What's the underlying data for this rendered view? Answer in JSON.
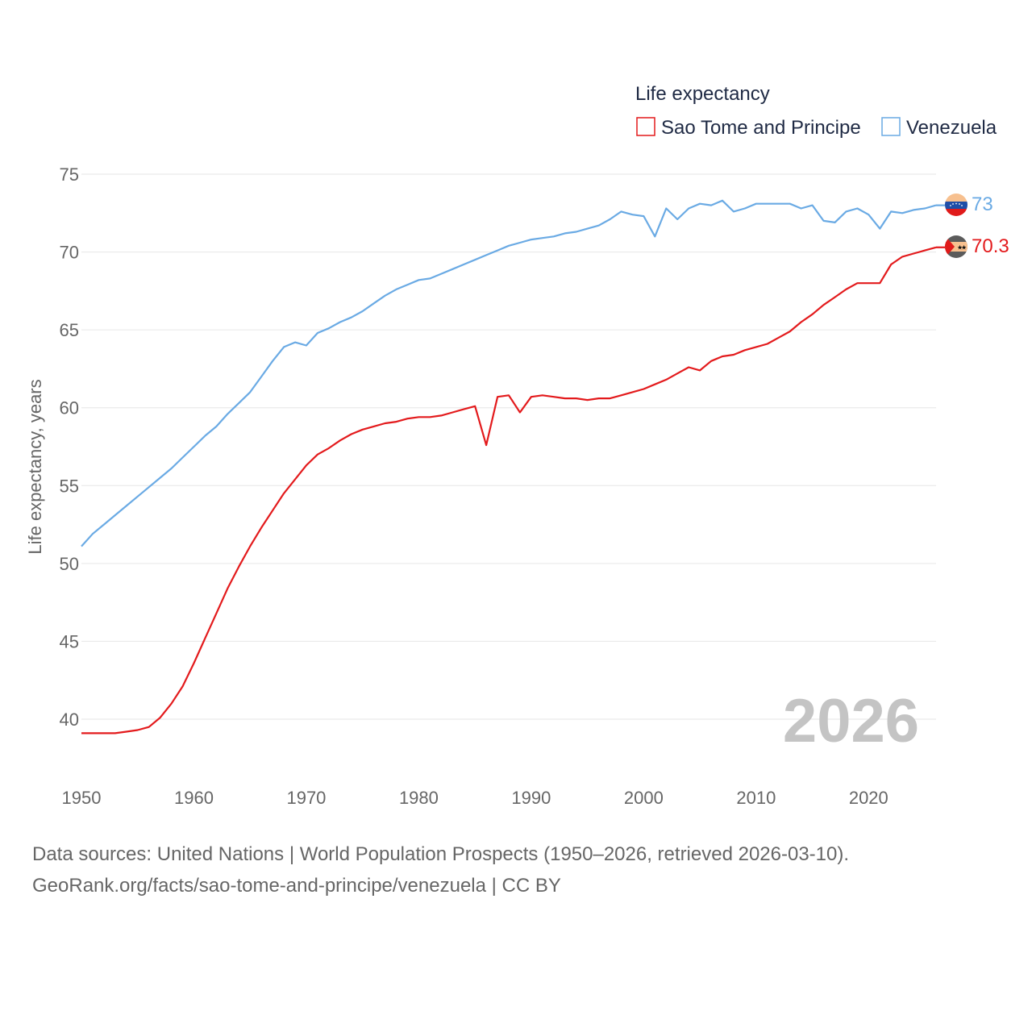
{
  "chart_data": {
    "type": "line",
    "legend_title": "Life expectancy",
    "ylabel": "Life expectancy, years",
    "xlim": [
      1950,
      2026
    ],
    "ylim": [
      37,
      76
    ],
    "y_ticks": [
      40,
      45,
      50,
      55,
      60,
      65,
      70,
      75
    ],
    "x_ticks": [
      1950,
      1960,
      1970,
      1980,
      1990,
      2000,
      2010,
      2020
    ],
    "year_label": "2026",
    "grid": true,
    "legend_position": "top-right",
    "x": [
      1950,
      1951,
      1952,
      1953,
      1954,
      1955,
      1956,
      1957,
      1958,
      1959,
      1960,
      1961,
      1962,
      1963,
      1964,
      1965,
      1966,
      1967,
      1968,
      1969,
      1970,
      1971,
      1972,
      1973,
      1974,
      1975,
      1976,
      1977,
      1978,
      1979,
      1980,
      1981,
      1982,
      1983,
      1984,
      1985,
      1986,
      1987,
      1988,
      1989,
      1990,
      1991,
      1992,
      1993,
      1994,
      1995,
      1996,
      1997,
      1998,
      1999,
      2000,
      2001,
      2002,
      2003,
      2004,
      2005,
      2006,
      2007,
      2008,
      2009,
      2010,
      2011,
      2012,
      2013,
      2014,
      2015,
      2016,
      2017,
      2018,
      2019,
      2020,
      2021,
      2022,
      2023,
      2024,
      2025,
      2026
    ],
    "series": [
      {
        "name": "Sao Tome and Principe",
        "color": "#e31a1c",
        "end_label": "70.3",
        "values": [
          39.1,
          39.1,
          39.1,
          39.1,
          39.2,
          39.3,
          39.5,
          40.1,
          41.0,
          42.1,
          43.6,
          45.2,
          46.8,
          48.4,
          49.8,
          51.1,
          52.3,
          53.4,
          54.5,
          55.4,
          56.3,
          57.0,
          57.4,
          57.9,
          58.3,
          58.6,
          58.8,
          59.0,
          59.1,
          59.3,
          59.4,
          59.4,
          59.5,
          59.7,
          59.9,
          60.1,
          57.6,
          60.7,
          60.8,
          59.7,
          60.7,
          60.8,
          60.7,
          60.6,
          60.6,
          60.5,
          60.6,
          60.6,
          60.8,
          61.0,
          61.2,
          61.5,
          61.8,
          62.2,
          62.6,
          62.4,
          63.0,
          63.3,
          63.4,
          63.7,
          63.9,
          64.1,
          64.5,
          64.9,
          65.5,
          66.0,
          66.6,
          67.1,
          67.6,
          68.0,
          68.0,
          68.0,
          69.2,
          69.7,
          69.9,
          70.1,
          70.3
        ]
      },
      {
        "name": "Venezuela",
        "color": "#6aaae4",
        "end_label": "73",
        "values": [
          51.1,
          51.9,
          52.5,
          53.1,
          53.7,
          54.3,
          54.9,
          55.5,
          56.1,
          56.8,
          57.5,
          58.2,
          58.8,
          59.6,
          60.3,
          61.0,
          62.0,
          63.0,
          63.9,
          64.2,
          64.0,
          64.8,
          65.1,
          65.5,
          65.8,
          66.2,
          66.7,
          67.2,
          67.6,
          67.9,
          68.2,
          68.3,
          68.6,
          68.9,
          69.2,
          69.5,
          69.8,
          70.1,
          70.4,
          70.6,
          70.8,
          70.9,
          71.0,
          71.2,
          71.3,
          71.5,
          71.7,
          72.1,
          72.6,
          72.4,
          72.3,
          71.0,
          72.8,
          72.1,
          72.8,
          73.1,
          73.0,
          73.3,
          72.6,
          72.8,
          73.1,
          73.1,
          73.1,
          73.1,
          72.8,
          73.0,
          72.0,
          71.9,
          72.6,
          72.8,
          72.4,
          71.5,
          72.6,
          72.5,
          72.7,
          72.8,
          73.0
        ]
      }
    ]
  },
  "footer": {
    "line1": "Data sources: United Nations | World Population Prospects (1950–2026, retrieved 2026-03-10).",
    "line2": "GeoRank.org/facts/sao-tome-and-principe/venezuela | CC BY"
  }
}
